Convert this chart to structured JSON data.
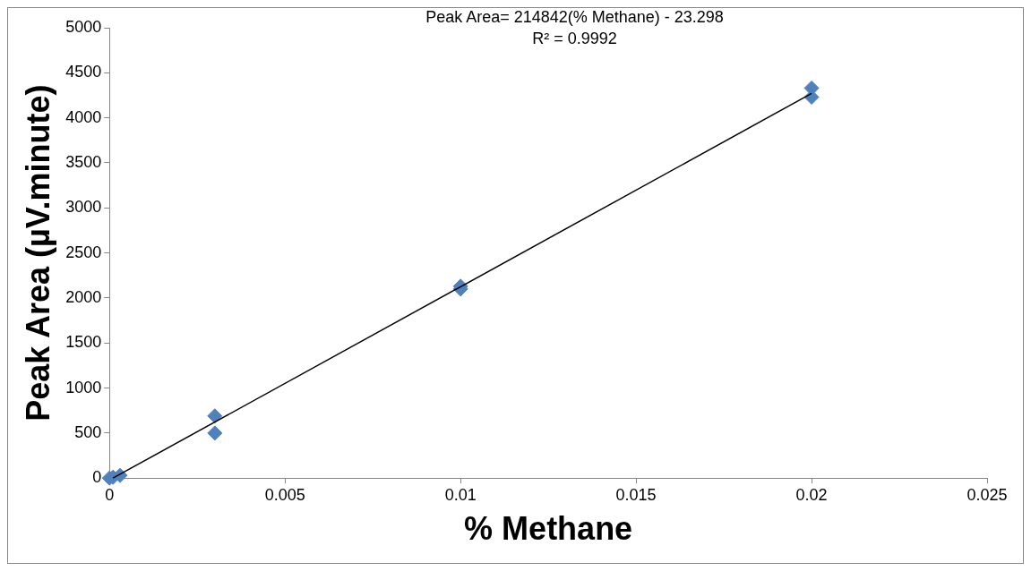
{
  "chart_data": {
    "type": "scatter",
    "xlabel": "% Methane",
    "ylabel": "Peak Area (µV.minute)",
    "xlim": [
      0,
      0.025
    ],
    "xticks": [
      0,
      0.005,
      0.01,
      0.015,
      0.02,
      0.025
    ],
    "ylim": [
      0,
      5000
    ],
    "yticks": [
      0,
      500,
      1000,
      1500,
      2000,
      2500,
      3000,
      3500,
      4000,
      4500,
      5000
    ],
    "grid": false,
    "legend": false,
    "marker": "diamond",
    "annotations": [
      "Peak Area= 214842(% Methane) - 23.298",
      "R² = 0.9992"
    ],
    "series": [
      {
        "color": "#4f81bd",
        "x": [
          0,
          0.0001,
          0.0003,
          0.003,
          0.003,
          0.01,
          0.01,
          0.02,
          0.02
        ],
        "values": [
          0,
          10,
          30,
          690,
          500,
          2130,
          2100,
          4330,
          4230
        ]
      },
      {
        "type": "line",
        "color": "#000000",
        "marker": "none",
        "x": [
          0.0001,
          0.02
        ],
        "values": [
          0,
          4270
        ]
      }
    ]
  }
}
